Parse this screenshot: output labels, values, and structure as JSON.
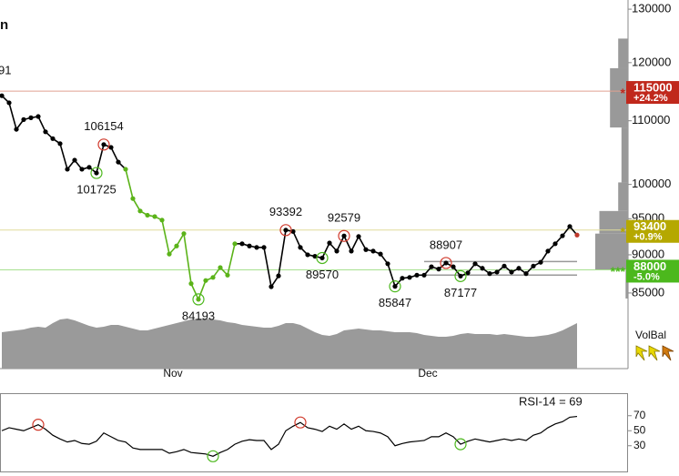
{
  "chart_data": {
    "type": "line",
    "title": "n",
    "cropped_label": "91",
    "log_scale": true,
    "categories": [
      null,
      null,
      null,
      null,
      null,
      null,
      null,
      null,
      null,
      null,
      null,
      null,
      null,
      null,
      null,
      null,
      null,
      null,
      null,
      null,
      null,
      null,
      null,
      "Nov",
      null,
      null,
      null,
      null,
      null,
      null,
      null,
      null,
      null,
      null,
      null,
      null,
      null,
      null,
      null,
      null,
      null,
      null,
      null,
      null,
      null,
      null,
      null,
      null,
      null,
      null,
      null,
      null,
      null,
      null,
      null,
      null,
      null,
      null,
      "Dec",
      null,
      null,
      null,
      null,
      null,
      null,
      null,
      null,
      null,
      null,
      null,
      null,
      null,
      null,
      null,
      null,
      null,
      null,
      null,
      null,
      null
    ],
    "series": [
      {
        "color": "#000000",
        "values": [
          114200,
          113000,
          108600,
          110200,
          110500,
          110700,
          108200,
          107100,
          106300,
          102300,
          103700,
          102300,
          102600,
          101725,
          106154,
          105700,
          103400,
          102300,
          97900,
          96100,
          95500,
          95300,
          94800,
          90100,
          91200,
          92900,
          86200,
          84193,
          86600,
          87000,
          88300,
          87300,
          91500,
          91500,
          91200,
          91000,
          91000,
          85800,
          87200,
          93392,
          93200,
          91000,
          90000,
          89800,
          89570,
          91600,
          90500,
          92579,
          90500,
          92500,
          90700,
          90500,
          90100,
          88800,
          85847,
          86900,
          87000,
          87300,
          87300,
          88400,
          88100,
          88907,
          88400,
          87177,
          87600,
          88800,
          88200,
          87500,
          87700,
          88500,
          87700,
          88200,
          87500,
          88500,
          89000,
          90500,
          91500,
          92600,
          93900,
          92700
        ]
      }
    ],
    "trend": {
      "color": "#5bb319",
      "from": 17,
      "to": 32
    },
    "last_point_color": "#c0392b",
    "annotations": {
      "highs": [
        14,
        39,
        47,
        61
      ],
      "lows": [
        13,
        27,
        44,
        54,
        63
      ],
      "high_color": "#d0392b",
      "low_color": "#4cb81d"
    },
    "ylim": [
      75900,
      131800
    ],
    "yticks": [
      130000,
      120000,
      110000,
      100000,
      95000,
      90000,
      85000
    ],
    "levels": [
      {
        "value": 115000,
        "change": "+24.2%",
        "marker": "*",
        "color": "#c0281c",
        "line_color": "#e0a090"
      },
      {
        "value": 93400,
        "change": "+0.9%",
        "marker": "*",
        "color": "#b5a800",
        "line_color": "#e0dc9a"
      },
      {
        "value": 88000,
        "change": "-5.0%",
        "marker": "***",
        "color": "#4cb81d",
        "line_color": "#a8e090"
      }
    ],
    "channel": {
      "upper": 89100,
      "lower": 87300,
      "from": 58,
      "color": "#999999"
    },
    "volume": {
      "color": "#9a9a9a",
      "lim": [
        0,
        100
      ],
      "values": [
        40,
        41,
        42,
        43,
        45,
        46,
        45,
        50,
        54,
        55,
        53,
        50,
        47,
        45,
        46,
        48,
        48,
        46,
        44,
        42,
        42,
        44,
        46,
        48,
        50,
        52,
        54,
        55,
        55,
        54,
        53,
        51,
        50,
        48,
        47,
        46,
        45,
        45,
        47,
        50,
        50,
        48,
        44,
        40,
        37,
        36,
        38,
        42,
        43,
        44,
        43,
        42,
        42,
        41,
        40,
        40,
        40,
        39,
        37,
        36,
        35,
        35,
        36,
        38,
        39,
        38,
        38,
        38,
        37,
        38,
        37,
        36,
        35,
        35,
        36,
        37,
        39,
        42,
        46,
        50
      ]
    },
    "volume_profile": {
      "color": "#999999",
      "lim": [
        0,
        50
      ],
      "bins": [
        84300,
        88000,
        92900,
        96100,
        100300,
        108900,
        119000,
        124400
      ],
      "values": [
        3,
        40,
        35,
        12,
        8,
        22,
        12
      ]
    },
    "volbal_label": "VolBal",
    "rsi": {
      "label": "RSI-14 = 69",
      "ylim": [
        0,
        100
      ],
      "yticks": [
        70,
        50,
        30
      ],
      "highs": [
        5,
        41
      ],
      "lows": [
        29,
        63
      ],
      "values": [
        50,
        54,
        52,
        50,
        54,
        58,
        52,
        44,
        39,
        35,
        37,
        33,
        32,
        36,
        47,
        42,
        37,
        35,
        27,
        25,
        25,
        25,
        25,
        20,
        22,
        25,
        21,
        20,
        19,
        16,
        21,
        25,
        32,
        36,
        38,
        37,
        37,
        25,
        32,
        50,
        56,
        61,
        54,
        52,
        49,
        56,
        52,
        59,
        52,
        56,
        50,
        49,
        47,
        42,
        30,
        33,
        35,
        36,
        37,
        42,
        42,
        47,
        42,
        32,
        36,
        39,
        37,
        35,
        37,
        39,
        37,
        39,
        37,
        44,
        47,
        54,
        59,
        62,
        68,
        69
      ]
    }
  }
}
